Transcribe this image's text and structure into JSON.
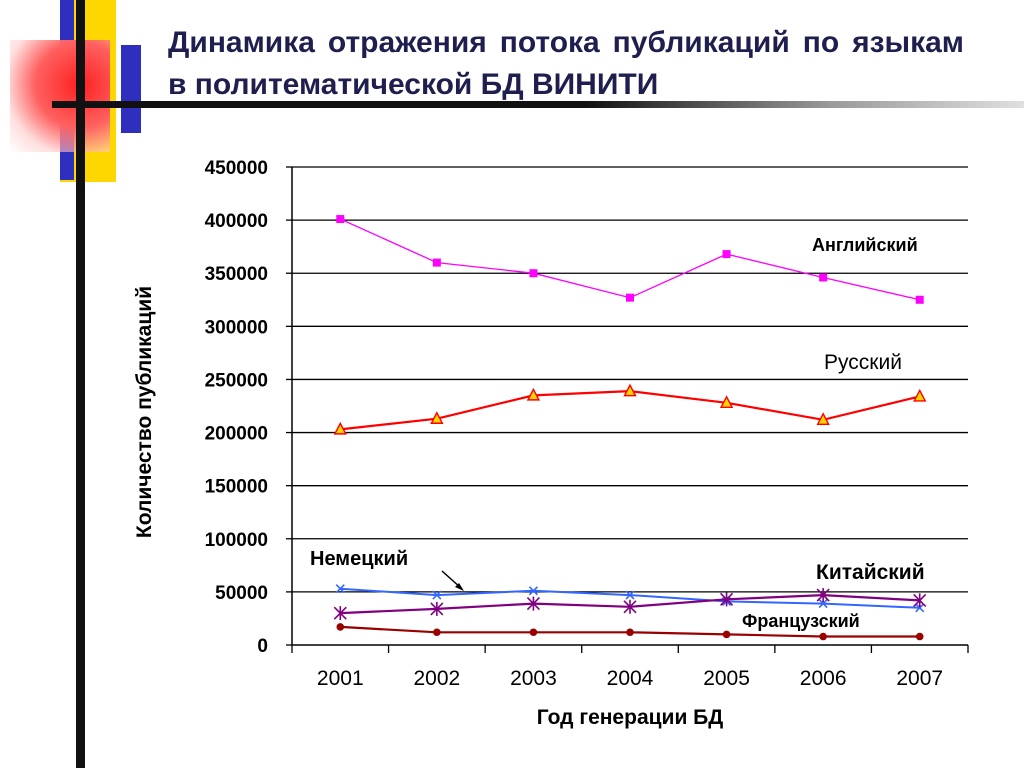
{
  "slide": {
    "title": "Динамика отражения потока публикаций по языкам в политематической БД ВИНИТИ"
  },
  "chart_data": {
    "type": "line",
    "title": "",
    "xlabel": "Год генерации БД",
    "ylabel": "Количество публикаций",
    "categories": [
      "2001",
      "2002",
      "2003",
      "2004",
      "2005",
      "2006",
      "2007"
    ],
    "yticks": [
      "0",
      "50000",
      "100000",
      "150000",
      "200000",
      "250000",
      "300000",
      "350000",
      "400000",
      "450000"
    ],
    "ylim": [
      0,
      450000
    ],
    "grid": true,
    "series": [
      {
        "name": "Английский",
        "color": "#ff00ff",
        "marker": "square",
        "values": [
          401000,
          360000,
          350000,
          327000,
          368000,
          346000,
          325000
        ]
      },
      {
        "name": "Русский",
        "color": "#ff0000",
        "marker": "triangle",
        "values": [
          203000,
          213000,
          235000,
          239000,
          228000,
          212000,
          234000
        ]
      },
      {
        "name": "Немецкий",
        "color": "#3366ff",
        "marker": "x",
        "values": [
          53000,
          47000,
          51000,
          47000,
          41000,
          39000,
          35000
        ]
      },
      {
        "name": "Китайский",
        "color": "#800080",
        "marker": "star",
        "values": [
          30000,
          34000,
          39000,
          36000,
          43000,
          47000,
          42000
        ]
      },
      {
        "name": "Французский",
        "color": "#990000",
        "marker": "circle",
        "values": [
          17000,
          12000,
          12000,
          12000,
          10000,
          8000,
          8000
        ]
      }
    ]
  }
}
